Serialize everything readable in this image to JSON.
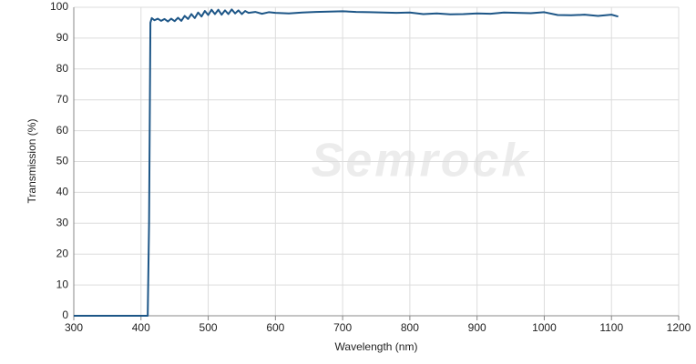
{
  "chart_data": {
    "type": "line",
    "watermark": "Semrock",
    "x_label": "Wavelength (nm)",
    "y_label": "Transmission (%)",
    "x": [
      300,
      410,
      412,
      414,
      416,
      420,
      425,
      430,
      435,
      440,
      445,
      450,
      455,
      460,
      465,
      470,
      475,
      480,
      485,
      490,
      495,
      500,
      505,
      510,
      515,
      520,
      525,
      530,
      535,
      540,
      545,
      550,
      555,
      560,
      570,
      580,
      590,
      600,
      620,
      640,
      660,
      680,
      700,
      720,
      740,
      760,
      780,
      800,
      820,
      840,
      860,
      880,
      900,
      920,
      940,
      960,
      980,
      1000,
      1020,
      1040,
      1060,
      1080,
      1100,
      1110
    ],
    "series": [
      {
        "name": "Transmission",
        "color": "#1d5687",
        "values": [
          0,
          0,
          30,
          95,
          96.5,
          95.8,
          96.3,
          95.6,
          96.2,
          95.4,
          96.3,
          95.5,
          96.6,
          95.6,
          97.2,
          96.2,
          97.8,
          96.5,
          98.3,
          97,
          98.8,
          97.5,
          99.2,
          97.8,
          99.2,
          97.6,
          99,
          97.8,
          99.3,
          98,
          99,
          97.8,
          98.8,
          98.2,
          98.5,
          97.9,
          98.4,
          98.2,
          98,
          98.3,
          98.5,
          98.6,
          98.7,
          98.5,
          98.4,
          98.3,
          98.2,
          98.3,
          97.8,
          98,
          97.7,
          97.8,
          98,
          97.9,
          98.3,
          98.2,
          98.1,
          98.4,
          97.5,
          97.4,
          97.6,
          97.2,
          97.6,
          97
        ]
      }
    ],
    "xlim": [
      300,
      1200
    ],
    "xticks": [
      300,
      400,
      500,
      600,
      700,
      800,
      900,
      1000,
      1100,
      1200
    ],
    "ylim": [
      0,
      100
    ],
    "yticks": [
      0,
      10,
      20,
      30,
      40,
      50,
      60,
      70,
      80,
      90,
      100
    ],
    "grid": true
  }
}
